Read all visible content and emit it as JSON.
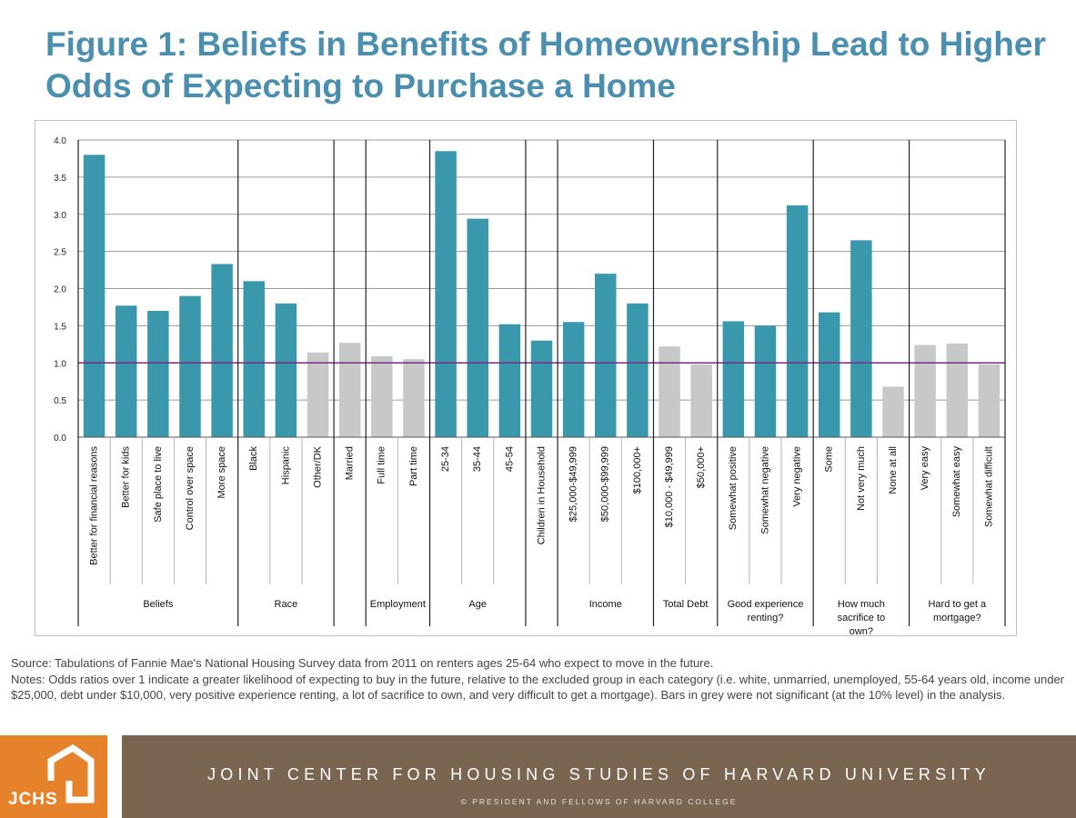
{
  "title": "Figure 1: Beliefs in Benefits of Homeownership Lead to Higher Odds of Expecting to Purchase a Home",
  "colors": {
    "significant": "#3a98ad",
    "not_significant": "#c8c8c8",
    "reference_line": "#7a2a7f",
    "title": "#4a8fb0",
    "footer_brand": "#7a6650",
    "logo": "#e6832a"
  },
  "chart_data": {
    "type": "bar",
    "ylim": [
      0,
      4.0
    ],
    "yticks": [
      "0.0",
      "0.5",
      "1.0",
      "1.5",
      "2.0",
      "2.5",
      "3.0",
      "3.5",
      "4.0"
    ],
    "reference_line": 1.0,
    "grid": true,
    "categories": [
      "Better for financial reasons",
      "Better for kids",
      "Safe place to live",
      "Control over space",
      "More space",
      "Black",
      "Hispanic",
      "Other/DK",
      "Married",
      "Full time",
      "Part time",
      "25-34",
      "35-44",
      "45-54",
      "Children in Household",
      "$25,000-$49,999",
      "$50,000-$99,999",
      "$100,000+",
      "$10,000 - $49,999",
      "$50,000+",
      "Somewhat positive",
      "Somewhat negative",
      "Very negative",
      "Some",
      "Not very much",
      "None at all",
      "Very easy",
      "Somewhat easy",
      "Somewhat difficult"
    ],
    "values": [
      3.8,
      1.77,
      1.7,
      1.9,
      2.33,
      2.1,
      1.8,
      1.14,
      1.27,
      1.09,
      1.05,
      3.85,
      2.94,
      1.52,
      1.3,
      1.55,
      2.2,
      1.8,
      1.22,
      0.98,
      1.56,
      1.5,
      3.12,
      1.68,
      2.65,
      0.68,
      1.24,
      1.26,
      0.98
    ],
    "significant": [
      true,
      true,
      true,
      true,
      true,
      true,
      true,
      false,
      false,
      false,
      false,
      true,
      true,
      true,
      true,
      true,
      true,
      true,
      false,
      false,
      true,
      true,
      true,
      true,
      true,
      false,
      false,
      false,
      false
    ],
    "groups": [
      {
        "label": "Beliefs",
        "size": 5
      },
      {
        "label": "Race",
        "size": 3
      },
      {
        "label": "",
        "size": 1
      },
      {
        "label": "Employment",
        "size": 2
      },
      {
        "label": "Age",
        "size": 3
      },
      {
        "label": "",
        "size": 1
      },
      {
        "label": "Income",
        "size": 3
      },
      {
        "label": "Total Debt",
        "size": 2
      },
      {
        "label": "Good experience renting?",
        "size": 3
      },
      {
        "label": "How much sacrifice to own?",
        "size": 3
      },
      {
        "label": "Hard to get a mortgage?",
        "size": 3
      }
    ]
  },
  "notes": {
    "source": "Source: Tabulations of Fannie Mae's National Housing Survey data from 2011 on renters ages 25-64 who expect to move in the future.",
    "notes": "Notes: Odds ratios over 1 indicate a greater likelihood of expecting to buy in the future, relative to the excluded group in each category (i.e. white, unmarried, unemployed, 55-64 years old, income under $25,000, debt under $10,000, very positive experience renting, a lot of sacrifice to own, and very difficult to get a mortgage). Bars in grey were not significant (at the 10% level) in the analysis."
  },
  "footer": {
    "logo_text": "JCHS",
    "org_name": "JOINT CENTER FOR HOUSING STUDIES OF HARVARD UNIVERSITY",
    "copyright": "© PRESIDENT AND FELLOWS OF HARVARD COLLEGE"
  }
}
